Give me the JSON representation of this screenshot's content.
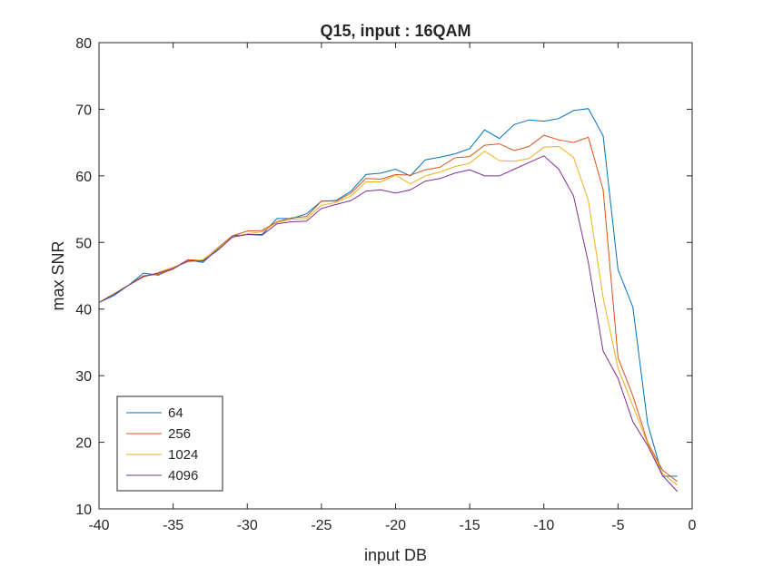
{
  "chart_data": {
    "type": "line",
    "title": "Q15, input : 16QAM",
    "xlabel": "input DB",
    "ylabel": "max SNR",
    "xlim": [
      -40,
      0
    ],
    "ylim": [
      10,
      80
    ],
    "xticks": [
      -40,
      -35,
      -30,
      -25,
      -20,
      -15,
      -10,
      -5,
      0
    ],
    "yticks": [
      10,
      20,
      30,
      40,
      50,
      60,
      70,
      80
    ],
    "xtick_labels": [
      "-40",
      "-35",
      "-30",
      "-25",
      "-20",
      "-15",
      "-10",
      "-5",
      "0"
    ],
    "ytick_labels": [
      "10",
      "20",
      "30",
      "40",
      "50",
      "60",
      "70",
      "80"
    ],
    "grid": false,
    "legend_position": "bottom-left",
    "x": [
      -40,
      -39,
      -38,
      -37,
      -36,
      -35,
      -34,
      -33,
      -32,
      -31,
      -30,
      -29,
      -28,
      -27,
      -26,
      -25,
      -24,
      -23,
      -22,
      -21,
      -20,
      -19,
      -18,
      -17,
      -16,
      -15,
      -14,
      -13,
      -12,
      -11,
      -10,
      -9,
      -8,
      -7,
      -6,
      -5,
      -4,
      -3,
      -2,
      -1
    ],
    "series": [
      {
        "name": "64",
        "color": "#0072BD",
        "values": [
          41.0,
          42.0,
          43.6,
          45.4,
          45.1,
          46.1,
          47.4,
          47.0,
          49.0,
          51.0,
          51.2,
          51.2,
          53.6,
          53.6,
          54.3,
          56.2,
          56.3,
          57.7,
          60.2,
          60.4,
          61.0,
          60.0,
          62.4,
          62.8,
          63.3,
          64.1,
          66.9,
          65.6,
          67.7,
          68.4,
          68.2,
          68.6,
          69.8,
          70.1,
          66.0,
          45.9,
          40.3,
          22.8,
          14.9,
          14.9
        ]
      },
      {
        "name": "256",
        "color": "#D95319",
        "values": [
          41.0,
          42.3,
          43.6,
          45.0,
          45.2,
          46.0,
          47.4,
          47.3,
          49.2,
          51.0,
          51.7,
          51.8,
          53.1,
          53.7,
          53.9,
          56.2,
          56.2,
          57.4,
          59.6,
          59.5,
          60.2,
          60.1,
          60.9,
          61.3,
          62.7,
          62.9,
          64.6,
          64.8,
          63.8,
          64.4,
          66.1,
          65.4,
          65.0,
          65.8,
          57.9,
          32.7,
          27.0,
          20.0,
          15.8,
          14.1
        ]
      },
      {
        "name": "1024",
        "color": "#EDB120",
        "values": [
          41.0,
          42.3,
          43.6,
          44.8,
          45.5,
          46.3,
          47.1,
          47.4,
          49.1,
          50.8,
          51.3,
          51.6,
          53.0,
          53.5,
          53.6,
          55.6,
          56.0,
          57.0,
          59.1,
          59.1,
          60.1,
          58.8,
          60.0,
          60.6,
          61.4,
          61.9,
          63.7,
          62.3,
          62.2,
          62.6,
          64.3,
          64.4,
          62.8,
          56.3,
          41.7,
          31.1,
          25.5,
          19.8,
          15.3,
          13.6
        ]
      },
      {
        "name": "4096",
        "color": "#7E2F8E",
        "values": [
          41.0,
          42.2,
          43.6,
          44.9,
          45.4,
          46.1,
          47.2,
          47.2,
          48.8,
          50.8,
          51.2,
          51.1,
          52.8,
          53.1,
          53.2,
          55.1,
          55.7,
          56.3,
          57.7,
          57.9,
          57.4,
          57.9,
          59.2,
          59.6,
          60.4,
          60.9,
          60.0,
          60.0,
          61.0,
          62.0,
          63.0,
          61.0,
          57.0,
          47.0,
          33.7,
          29.6,
          23.1,
          19.5,
          15.0,
          12.6
        ]
      }
    ]
  }
}
